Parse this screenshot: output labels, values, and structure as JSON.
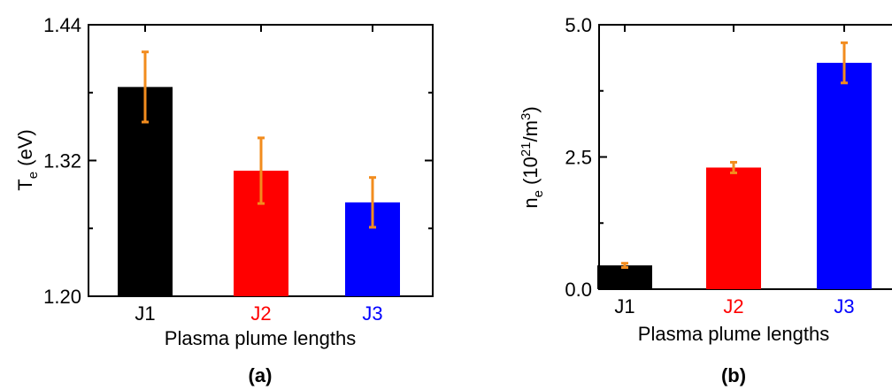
{
  "colors": {
    "error_bar": "#F28C1E",
    "axis": "#000000"
  },
  "chart_data": [
    {
      "type": "bar",
      "panel_label": "(a)",
      "categories": [
        "J1",
        "J2",
        "J3"
      ],
      "category_colors": [
        "#000000",
        "#FF0000",
        "#0000FF"
      ],
      "values": [
        1.385,
        1.311,
        1.283
      ],
      "errors": [
        0.031,
        0.029,
        0.022
      ],
      "ylim": [
        1.2,
        1.44
      ],
      "yticks": [
        1.2,
        1.32,
        1.44
      ],
      "ytick_labels": [
        "1.20",
        "1.32",
        "1.44"
      ],
      "ylabel": "T",
      "ylabel_sub": "e",
      "ylabel_tail": " (eV)",
      "xlabel": "Plasma plume lengths"
    },
    {
      "type": "bar",
      "panel_label": "(b)",
      "categories": [
        "J1",
        "J2",
        "J3"
      ],
      "category_colors": [
        "#000000",
        "#FF0000",
        "#0000FF"
      ],
      "values": [
        0.45,
        2.3,
        4.28
      ],
      "errors": [
        0.04,
        0.1,
        0.38
      ],
      "ylim": [
        0.0,
        5.0
      ],
      "yticks": [
        0.0,
        2.5,
        5.0
      ],
      "ytick_labels": [
        "0.0",
        "2.5",
        "5.0"
      ],
      "ylabel": "n",
      "ylabel_sub": "e",
      "ylabel_tail": " (10",
      "ylabel_sup": "21",
      "ylabel_tail2": "/m",
      "ylabel_sup2": "3",
      "ylabel_end": ")",
      "xlabel": "Plasma plume lengths"
    }
  ]
}
